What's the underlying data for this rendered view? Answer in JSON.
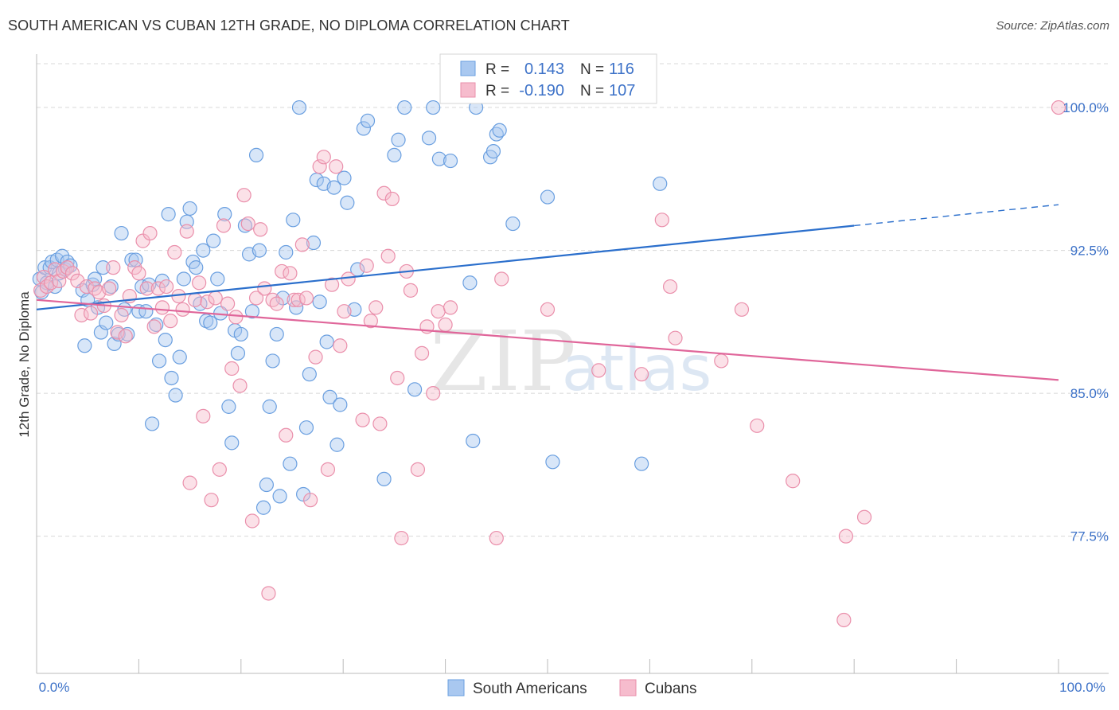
{
  "title": "SOUTH AMERICAN VS CUBAN 12TH GRADE, NO DIPLOMA CORRELATION CHART",
  "source": "Source: ZipAtlas.com",
  "watermark": {
    "zip": "ZIP",
    "atlas": "atlas"
  },
  "colors": {
    "blue_fill": "#a9c8f0",
    "blue_stroke": "#6a9fe0",
    "blue_line": "#2b6fcc",
    "pink_fill": "#f6bccd",
    "pink_stroke": "#ea8fab",
    "pink_line": "#e0669a",
    "tick_text": "#3d72c8",
    "grid": "#d8d8d8"
  },
  "legend_top": {
    "rows": [
      {
        "r_label": "R =",
        "r_value": "0.143",
        "n_label": "N =",
        "n_value": "116"
      },
      {
        "r_label": "R =",
        "r_value": "-0.190",
        "n_label": "N =",
        "n_value": "107"
      }
    ]
  },
  "legend_bottom": {
    "items": [
      "South Americans",
      "Cubans"
    ]
  },
  "chart_data": {
    "type": "scatter",
    "xlabel": "",
    "ylabel": "12th Grade, No Diploma",
    "xlim": [
      0,
      100
    ],
    "ylim": [
      70.3,
      102.3
    ],
    "x_tick_labels": [
      "0.0%",
      "100.0%"
    ],
    "y_ticks": [
      77.5,
      85.0,
      92.5,
      100.0
    ],
    "y_tick_labels": [
      "77.5%",
      "85.0%",
      "92.5%",
      "100.0%"
    ],
    "grid": "horizontal dashed",
    "legend": "bottom-center",
    "series": [
      {
        "name": "South Americans",
        "r": 0.143,
        "n": 116,
        "trend": {
          "x0": 0,
          "y0": 89.4,
          "x1": 80,
          "y1": 93.8,
          "dashed_to_x": 100,
          "dashed_to_y": 94.9
        },
        "points": [
          [
            0.3,
            91.0
          ],
          [
            0.5,
            90.3
          ],
          [
            0.8,
            91.6
          ],
          [
            1.0,
            90.8
          ],
          [
            1.3,
            91.6
          ],
          [
            1.5,
            91.9
          ],
          [
            1.8,
            90.6
          ],
          [
            2.0,
            92.0
          ],
          [
            2.2,
            91.3
          ],
          [
            2.5,
            92.2
          ],
          [
            2.8,
            91.5
          ],
          [
            3.0,
            91.9
          ],
          [
            3.3,
            91.7
          ],
          [
            4.5,
            90.4
          ],
          [
            4.7,
            87.5
          ],
          [
            5.0,
            89.9
          ],
          [
            5.5,
            90.7
          ],
          [
            5.7,
            91.0
          ],
          [
            6.0,
            89.5
          ],
          [
            6.3,
            88.2
          ],
          [
            6.5,
            91.6
          ],
          [
            6.8,
            88.7
          ],
          [
            7.3,
            90.6
          ],
          [
            7.6,
            87.6
          ],
          [
            8.0,
            88.1
          ],
          [
            8.3,
            93.4
          ],
          [
            8.6,
            89.4
          ],
          [
            8.9,
            88.1
          ],
          [
            9.3,
            92.0
          ],
          [
            9.7,
            92.0
          ],
          [
            10.0,
            89.3
          ],
          [
            10.3,
            90.6
          ],
          [
            10.7,
            89.3
          ],
          [
            11.0,
            90.7
          ],
          [
            11.3,
            83.4
          ],
          [
            11.7,
            88.6
          ],
          [
            12.0,
            86.7
          ],
          [
            12.3,
            90.9
          ],
          [
            12.6,
            87.8
          ],
          [
            12.9,
            94.4
          ],
          [
            13.2,
            85.8
          ],
          [
            13.6,
            84.9
          ],
          [
            14.0,
            86.9
          ],
          [
            14.4,
            91.0
          ],
          [
            14.7,
            94.0
          ],
          [
            15.0,
            94.7
          ],
          [
            15.3,
            91.9
          ],
          [
            15.6,
            91.6
          ],
          [
            16.0,
            89.7
          ],
          [
            16.3,
            92.5
          ],
          [
            16.6,
            88.8
          ],
          [
            17.0,
            88.7
          ],
          [
            17.3,
            93.0
          ],
          [
            17.7,
            91.0
          ],
          [
            18.0,
            89.2
          ],
          [
            18.4,
            94.4
          ],
          [
            18.8,
            84.3
          ],
          [
            19.1,
            82.4
          ],
          [
            19.4,
            88.3
          ],
          [
            19.7,
            87.1
          ],
          [
            20.0,
            88.1
          ],
          [
            20.4,
            93.8
          ],
          [
            20.8,
            92.3
          ],
          [
            21.1,
            89.3
          ],
          [
            21.5,
            97.5
          ],
          [
            21.8,
            92.5
          ],
          [
            22.2,
            79.0
          ],
          [
            22.5,
            80.2
          ],
          [
            22.8,
            84.3
          ],
          [
            23.1,
            86.7
          ],
          [
            23.5,
            88.1
          ],
          [
            23.8,
            79.6
          ],
          [
            24.1,
            90.0
          ],
          [
            24.4,
            92.4
          ],
          [
            24.8,
            81.3
          ],
          [
            25.1,
            94.1
          ],
          [
            25.4,
            89.5
          ],
          [
            25.7,
            100.0
          ],
          [
            26.1,
            79.7
          ],
          [
            26.4,
            83.2
          ],
          [
            26.7,
            86.0
          ],
          [
            27.1,
            92.9
          ],
          [
            27.4,
            96.2
          ],
          [
            27.7,
            89.8
          ],
          [
            28.1,
            96.0
          ],
          [
            28.4,
            87.7
          ],
          [
            28.7,
            84.8
          ],
          [
            29.1,
            95.8
          ],
          [
            29.4,
            82.3
          ],
          [
            29.7,
            84.4
          ],
          [
            30.1,
            96.3
          ],
          [
            30.4,
            95.0
          ],
          [
            31.1,
            89.4
          ],
          [
            31.4,
            91.5
          ],
          [
            32.0,
            98.9
          ],
          [
            32.4,
            99.3
          ],
          [
            34.0,
            80.5
          ],
          [
            35.0,
            97.5
          ],
          [
            35.4,
            98.3
          ],
          [
            36.0,
            100.0
          ],
          [
            37.0,
            85.2
          ],
          [
            38.4,
            98.4
          ],
          [
            38.8,
            100.0
          ],
          [
            39.4,
            97.3
          ],
          [
            40.5,
            97.2
          ],
          [
            42.4,
            90.8
          ],
          [
            42.7,
            82.5
          ],
          [
            43.0,
            100.0
          ],
          [
            44.4,
            97.4
          ],
          [
            44.7,
            97.7
          ],
          [
            45.0,
            98.6
          ],
          [
            45.3,
            98.8
          ],
          [
            46.6,
            93.9
          ],
          [
            50.0,
            95.3
          ],
          [
            50.5,
            81.4
          ],
          [
            59.2,
            81.3
          ],
          [
            61.0,
            96.0
          ]
        ]
      },
      {
        "name": "Cubans",
        "r": -0.19,
        "n": 107,
        "trend": {
          "x0": 0,
          "y0": 89.9,
          "x1": 100,
          "y1": 85.7
        },
        "points": [
          [
            0.4,
            90.4
          ],
          [
            0.7,
            91.1
          ],
          [
            1.0,
            90.6
          ],
          [
            1.4,
            90.8
          ],
          [
            1.8,
            91.5
          ],
          [
            2.2,
            90.9
          ],
          [
            2.6,
            91.4
          ],
          [
            3.0,
            91.6
          ],
          [
            3.5,
            91.3
          ],
          [
            4.0,
            90.9
          ],
          [
            4.4,
            89.1
          ],
          [
            4.9,
            90.6
          ],
          [
            5.3,
            89.2
          ],
          [
            5.7,
            90.5
          ],
          [
            6.1,
            90.3
          ],
          [
            6.6,
            89.6
          ],
          [
            7.1,
            90.5
          ],
          [
            7.5,
            91.6
          ],
          [
            7.9,
            88.2
          ],
          [
            8.3,
            89.1
          ],
          [
            8.7,
            88.0
          ],
          [
            9.1,
            90.1
          ],
          [
            9.6,
            91.6
          ],
          [
            10.0,
            91.3
          ],
          [
            10.4,
            93.0
          ],
          [
            10.8,
            90.5
          ],
          [
            11.1,
            93.4
          ],
          [
            11.5,
            88.5
          ],
          [
            11.9,
            90.5
          ],
          [
            12.3,
            89.5
          ],
          [
            12.7,
            90.6
          ],
          [
            13.1,
            88.8
          ],
          [
            13.5,
            92.4
          ],
          [
            13.9,
            90.1
          ],
          [
            14.3,
            89.4
          ],
          [
            14.7,
            93.5
          ],
          [
            15.0,
            80.3
          ],
          [
            15.5,
            89.9
          ],
          [
            15.9,
            90.8
          ],
          [
            16.3,
            83.8
          ],
          [
            16.7,
            89.8
          ],
          [
            17.1,
            79.4
          ],
          [
            17.5,
            90.0
          ],
          [
            17.9,
            81.0
          ],
          [
            18.3,
            93.8
          ],
          [
            18.7,
            89.7
          ],
          [
            19.1,
            86.3
          ],
          [
            19.5,
            89.0
          ],
          [
            19.9,
            85.4
          ],
          [
            20.3,
            95.4
          ],
          [
            20.7,
            93.9
          ],
          [
            21.1,
            78.3
          ],
          [
            21.5,
            90.0
          ],
          [
            21.9,
            93.6
          ],
          [
            22.3,
            90.5
          ],
          [
            22.7,
            74.5
          ],
          [
            23.1,
            89.9
          ],
          [
            23.5,
            89.7
          ],
          [
            24.0,
            91.4
          ],
          [
            24.4,
            82.8
          ],
          [
            24.8,
            91.3
          ],
          [
            25.2,
            89.9
          ],
          [
            25.6,
            89.9
          ],
          [
            26.0,
            92.8
          ],
          [
            26.4,
            90.0
          ],
          [
            26.8,
            79.4
          ],
          [
            27.3,
            86.9
          ],
          [
            27.7,
            96.9
          ],
          [
            28.1,
            97.4
          ],
          [
            28.5,
            81.0
          ],
          [
            28.9,
            90.7
          ],
          [
            29.3,
            96.9
          ],
          [
            29.7,
            87.5
          ],
          [
            30.1,
            89.3
          ],
          [
            30.5,
            91.0
          ],
          [
            31.9,
            83.6
          ],
          [
            32.3,
            91.7
          ],
          [
            32.7,
            88.8
          ],
          [
            33.2,
            89.5
          ],
          [
            33.6,
            83.4
          ],
          [
            34.0,
            95.5
          ],
          [
            34.4,
            92.2
          ],
          [
            34.8,
            95.2
          ],
          [
            35.3,
            85.8
          ],
          [
            35.7,
            77.4
          ],
          [
            36.2,
            91.4
          ],
          [
            36.6,
            90.4
          ],
          [
            37.3,
            81.0
          ],
          [
            37.7,
            87.1
          ],
          [
            38.2,
            88.5
          ],
          [
            38.8,
            85.0
          ],
          [
            39.3,
            89.3
          ],
          [
            40.0,
            88.6
          ],
          [
            40.5,
            89.5
          ],
          [
            45.0,
            77.4
          ],
          [
            45.5,
            91.0
          ],
          [
            50.0,
            89.4
          ],
          [
            55.0,
            86.2
          ],
          [
            59.2,
            86.0
          ],
          [
            61.2,
            94.1
          ],
          [
            62.0,
            90.6
          ],
          [
            62.5,
            87.9
          ],
          [
            67.0,
            86.7
          ],
          [
            69.0,
            89.4
          ],
          [
            70.5,
            83.3
          ],
          [
            74.0,
            80.4
          ],
          [
            79.0,
            73.1
          ],
          [
            79.2,
            77.5
          ],
          [
            81.0,
            78.5
          ],
          [
            100.0,
            100.0
          ]
        ]
      }
    ]
  }
}
